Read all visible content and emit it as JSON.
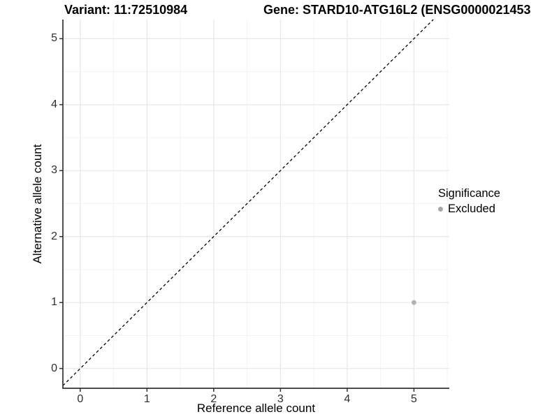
{
  "chart_data": {
    "type": "scatter",
    "title_left": "Variant: 11:72510984",
    "title_right": "Gene: STARD10-ATG16L2 (ENSG0000021453",
    "xlabel": "Reference allele count",
    "ylabel": "Alternative allele count",
    "xlim": [
      -0.26,
      5.53
    ],
    "ylim": [
      -0.3,
      5.29
    ],
    "x_major_ticks": [
      0,
      1,
      2,
      3,
      4,
      5
    ],
    "y_major_ticks": [
      0,
      1,
      2,
      3,
      4,
      5
    ],
    "x_minor_ticks": [
      0.5,
      1.5,
      2.5,
      3.5,
      4.5,
      5.5
    ],
    "y_minor_ticks": [
      0.5,
      1.5,
      2.5,
      3.5,
      4.5,
      5.5
    ],
    "grid": true,
    "series": [
      {
        "name": "Excluded",
        "color": "#b3b3b3",
        "points": [
          {
            "x": 5,
            "y": 1
          }
        ]
      }
    ],
    "reference_line": {
      "type": "identity",
      "equation": "y = x",
      "style": "dashed",
      "color": "#000000"
    },
    "legend": {
      "title": "Significance",
      "position": "right",
      "entries": [
        "Excluded"
      ]
    }
  },
  "colors": {
    "grid_major": "#e7e7e7",
    "grid_minor": "#f3f3f3",
    "axis": "#333333",
    "identity_line": "#000000",
    "point": "#b3b3b3",
    "legend_key": "#a6a6a6"
  }
}
